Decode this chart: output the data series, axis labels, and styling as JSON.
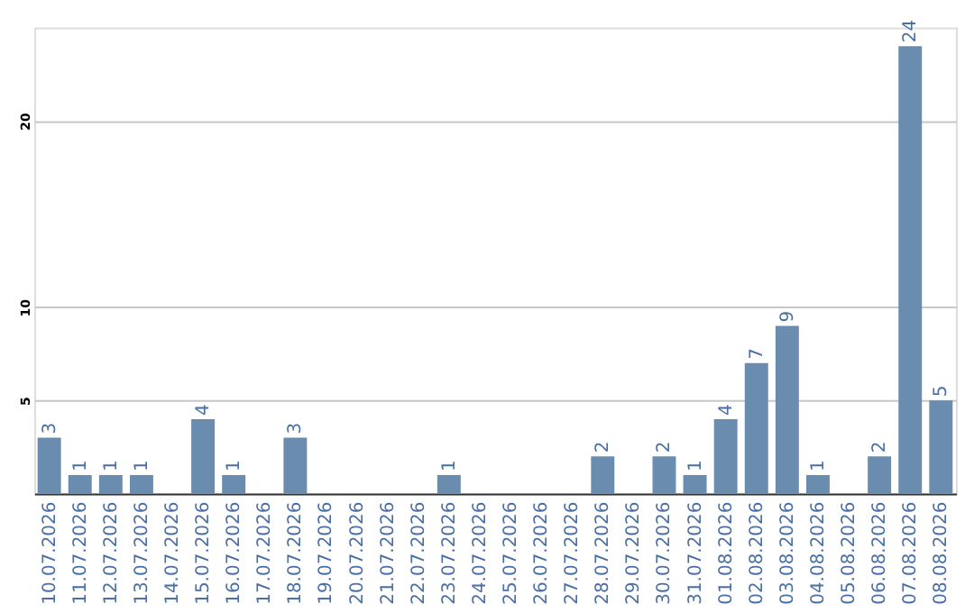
{
  "chart_data": {
    "type": "bar",
    "categories": [
      "10.07.2026",
      "11.07.2026",
      "12.07.2026",
      "13.07.2026",
      "14.07.2026",
      "15.07.2026",
      "16.07.2026",
      "17.07.2026",
      "18.07.2026",
      "19.07.2026",
      "20.07.2026",
      "21.07.2026",
      "22.07.2026",
      "23.07.2026",
      "24.07.2026",
      "25.07.2026",
      "26.07.2026",
      "27.07.2026",
      "28.07.2026",
      "29.07.2026",
      "30.07.2026",
      "31.07.2026",
      "01.08.2026",
      "02.08.2026",
      "03.08.2026",
      "04.08.2026",
      "05.08.2026",
      "06.08.2026",
      "07.08.2026",
      "08.08.2026"
    ],
    "values": [
      3,
      1,
      1,
      1,
      0,
      4,
      1,
      0,
      3,
      0,
      0,
      0,
      0,
      1,
      0,
      0,
      0,
      0,
      2,
      0,
      2,
      1,
      4,
      7,
      9,
      1,
      0,
      2,
      24,
      5
    ],
    "value_labels": [
      "3",
      "1",
      "1",
      "1",
      null,
      "4",
      "1",
      null,
      "3",
      null,
      null,
      null,
      null,
      "1",
      null,
      null,
      null,
      null,
      "2",
      null,
      "2",
      "1",
      "4",
      "7",
      "9",
      "1",
      null,
      "2",
      "24",
      "5"
    ],
    "color": "#6a8caf",
    "ylim": [
      0,
      25
    ],
    "yticks": [
      5,
      10,
      20
    ],
    "grid": "y"
  }
}
